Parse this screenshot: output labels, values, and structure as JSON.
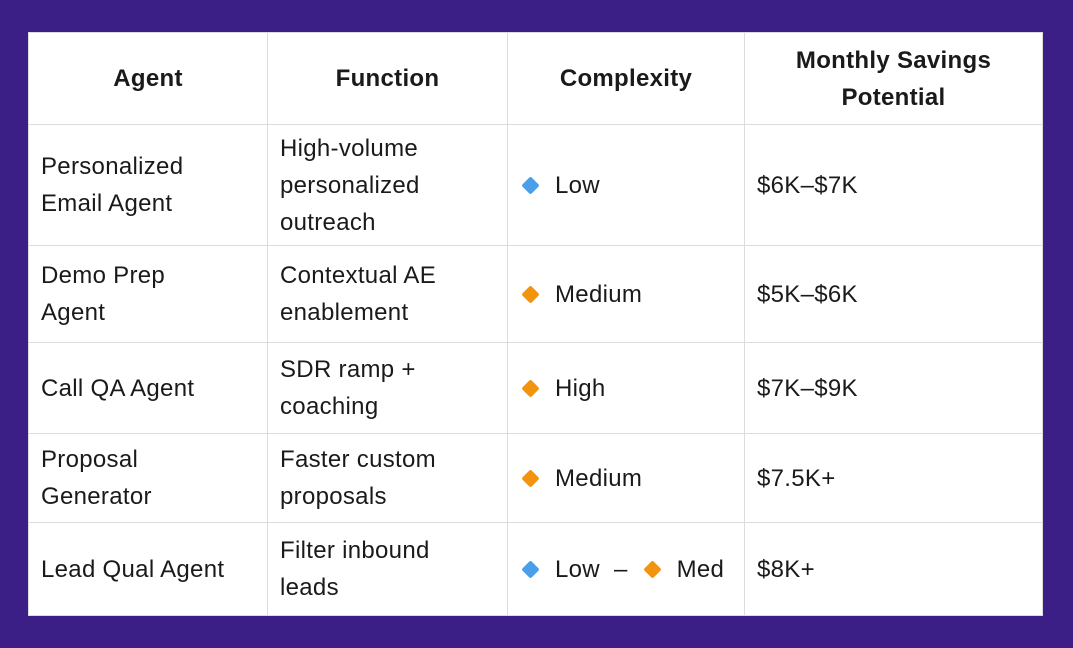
{
  "colors": {
    "background": "#3B1E86",
    "table_background": "#FFFFFF",
    "border": "#DCDCDC",
    "text": "#1A1A1A",
    "blue_diamond": "#4AA0E8",
    "orange_diamond": "#F2940F"
  },
  "header": {
    "columns": [
      "Agent",
      "Function",
      "Complexity",
      "Monthly Savings\nPotential"
    ]
  },
  "rows": [
    {
      "agent": "Personalized\nEmail Agent",
      "function": "High-volume\npersonalized\noutreach",
      "complexity": [
        {
          "icon": "blue_diamond",
          "label": "Low"
        }
      ],
      "savings": "$6K–$7K"
    },
    {
      "agent": "Demo Prep\nAgent",
      "function": "Contextual AE\nenablement",
      "complexity": [
        {
          "icon": "orange_diamond",
          "label": "Medium"
        }
      ],
      "savings": "$5K–$6K"
    },
    {
      "agent": "Call QA Agent",
      "function": "SDR ramp +\ncoaching",
      "complexity": [
        {
          "icon": "orange_diamond",
          "label": "High"
        }
      ],
      "savings": "$7K–$9K"
    },
    {
      "agent": "Proposal\nGenerator",
      "function": "Faster custom\nproposals",
      "complexity": [
        {
          "icon": "orange_diamond",
          "label": "Medium"
        }
      ],
      "savings": "$7.5K+"
    },
    {
      "agent": "Lead Qual Agent",
      "function": "Filter inbound\nleads",
      "complexity": [
        {
          "icon": "blue_diamond",
          "label": "Low"
        },
        {
          "separator": "–"
        },
        {
          "icon": "orange_diamond",
          "label": "Med"
        }
      ],
      "savings": "$8K+"
    }
  ]
}
